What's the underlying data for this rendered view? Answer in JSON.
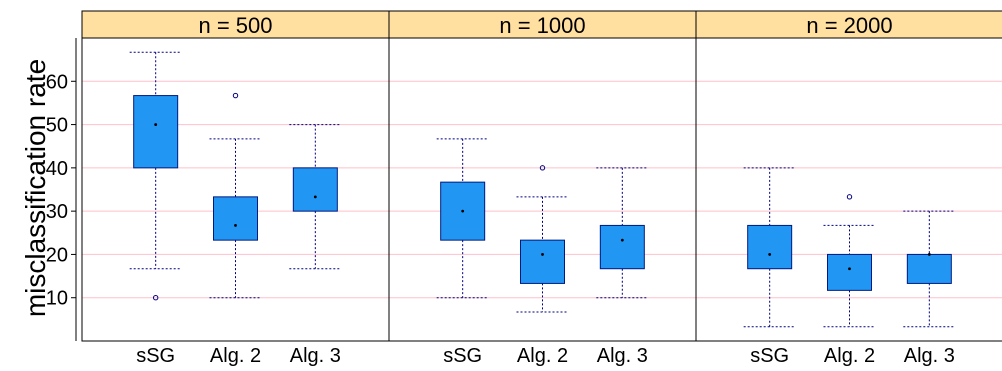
{
  "chart_data": {
    "type": "boxplot",
    "ylabel": "misclassification rate",
    "yticks": [
      10,
      20,
      30,
      40,
      50,
      60
    ],
    "ylim": [
      0,
      70
    ],
    "grid": true,
    "colors": {
      "strip": "#ffe0a0",
      "box_fill": "#2196f3",
      "box_border": "#001a80",
      "whisker": "#000080",
      "grid": "#ffc0cb",
      "outlier": "#000080"
    },
    "categories": [
      "sSG",
      "Alg. 2",
      "Alg. 3"
    ],
    "panels": [
      {
        "label": "n = 500",
        "boxes": [
          {
            "category": "sSG",
            "min": 16.7,
            "q1": 40,
            "median": 50,
            "q3": 56.7,
            "max": 66.7,
            "outliers": [
              10
            ]
          },
          {
            "category": "Alg. 2",
            "min": 10,
            "q1": 23.3,
            "median": 26.7,
            "q3": 33.3,
            "max": 46.7,
            "outliers": [
              56.7
            ]
          },
          {
            "category": "Alg. 3",
            "min": 16.7,
            "q1": 30,
            "median": 33.3,
            "q3": 40,
            "max": 50,
            "outliers": []
          }
        ]
      },
      {
        "label": "n = 1000",
        "boxes": [
          {
            "category": "sSG",
            "min": 10,
            "q1": 23.3,
            "median": 30,
            "q3": 36.7,
            "max": 46.7,
            "outliers": []
          },
          {
            "category": "Alg. 2",
            "min": 6.7,
            "q1": 13.3,
            "median": 20,
            "q3": 23.3,
            "max": 33.3,
            "outliers": [
              40
            ]
          },
          {
            "category": "Alg. 3",
            "min": 10,
            "q1": 16.7,
            "median": 23.3,
            "q3": 26.7,
            "max": 40,
            "outliers": []
          }
        ]
      },
      {
        "label": "n = 2000",
        "boxes": [
          {
            "category": "sSG",
            "min": 3.3,
            "q1": 16.7,
            "median": 20,
            "q3": 26.7,
            "max": 40,
            "outliers": []
          },
          {
            "category": "Alg. 2",
            "min": 3.3,
            "q1": 11.7,
            "median": 16.7,
            "q3": 20,
            "max": 26.7,
            "outliers": [
              33.3
            ]
          },
          {
            "category": "Alg. 3",
            "min": 3.3,
            "q1": 13.3,
            "median": 20,
            "q3": 20,
            "max": 30,
            "outliers": []
          }
        ]
      }
    ]
  }
}
